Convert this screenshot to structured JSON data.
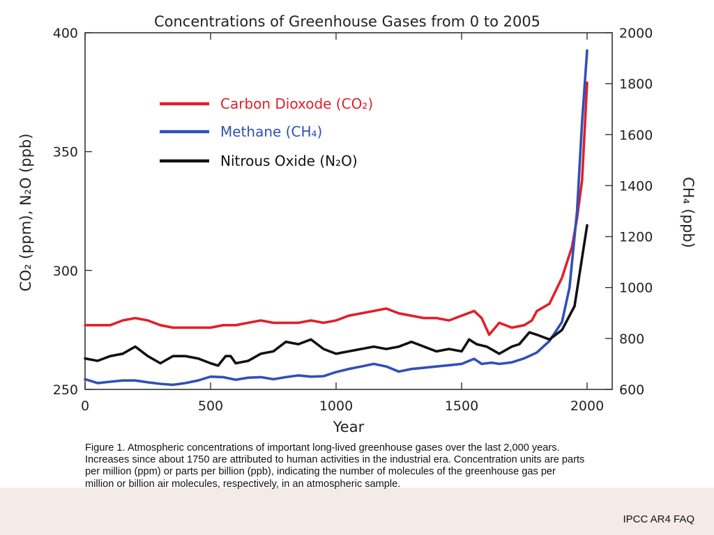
{
  "chart_data": {
    "type": "line",
    "title": "Concentrations of Greenhouse Gases from 0 to 2005",
    "xlabel": "Year",
    "ylabel_left": "CO₂ (ppm), N₂O (ppb)",
    "ylabel_right": "CH₄ (ppb)",
    "xlim": [
      0,
      2100
    ],
    "ylim_left": [
      250,
      400
    ],
    "ylim_right": [
      600,
      2000
    ],
    "x_ticks": [
      "0",
      "500",
      "1000",
      "1500",
      "2000"
    ],
    "y_left_ticks": [
      "250",
      "300",
      "350",
      "400"
    ],
    "y_right_ticks": [
      "600",
      "800",
      "1000",
      "1200",
      "1400",
      "1600",
      "1800",
      "2000"
    ],
    "series": [
      {
        "name": "Carbon Dioxode (CO₂)",
        "color": "#e0202a",
        "axis": "left",
        "x": [
          0,
          50,
          100,
          150,
          200,
          250,
          300,
          350,
          400,
          450,
          500,
          550,
          600,
          650,
          700,
          750,
          800,
          850,
          900,
          950,
          1000,
          1050,
          1100,
          1150,
          1200,
          1250,
          1300,
          1350,
          1400,
          1450,
          1500,
          1550,
          1580,
          1610,
          1650,
          1700,
          1750,
          1780,
          1800,
          1850,
          1900,
          1940,
          1960,
          1980,
          2000
        ],
        "y": [
          277,
          277,
          277,
          279,
          280,
          279,
          277,
          276,
          276,
          276,
          276,
          277,
          277,
          278,
          279,
          278,
          278,
          278,
          279,
          278,
          279,
          281,
          282,
          283,
          284,
          282,
          281,
          280,
          280,
          279,
          281,
          283,
          280,
          273,
          278,
          276,
          277,
          279,
          283,
          286,
          297,
          310,
          322,
          338,
          379
        ]
      },
      {
        "name": "Methane (CH₄)",
        "color": "#3050b8",
        "axis": "right",
        "x": [
          0,
          50,
          100,
          150,
          200,
          250,
          300,
          350,
          400,
          450,
          500,
          550,
          600,
          650,
          700,
          750,
          800,
          850,
          900,
          950,
          1000,
          1050,
          1100,
          1150,
          1200,
          1250,
          1300,
          1350,
          1400,
          1450,
          1500,
          1550,
          1580,
          1620,
          1650,
          1700,
          1750,
          1800,
          1850,
          1900,
          1930,
          1960,
          1980,
          2000
        ],
        "y": [
          640,
          625,
          630,
          635,
          635,
          628,
          622,
          618,
          625,
          635,
          650,
          648,
          638,
          646,
          648,
          640,
          648,
          655,
          650,
          652,
          668,
          680,
          690,
          700,
          690,
          670,
          680,
          685,
          690,
          695,
          700,
          720,
          700,
          705,
          700,
          706,
          722,
          745,
          790,
          865,
          1000,
          1300,
          1650,
          1930
        ]
      },
      {
        "name": "Nitrous Oxide (N₂O)",
        "color": "#111111",
        "axis": "left",
        "x": [
          0,
          50,
          100,
          150,
          200,
          250,
          300,
          350,
          400,
          450,
          500,
          530,
          560,
          580,
          600,
          650,
          700,
          750,
          800,
          850,
          900,
          950,
          1000,
          1050,
          1100,
          1150,
          1200,
          1250,
          1300,
          1350,
          1400,
          1450,
          1500,
          1530,
          1560,
          1600,
          1650,
          1700,
          1730,
          1770,
          1800,
          1850,
          1900,
          1950,
          2000
        ],
        "y": [
          263,
          262,
          264,
          265,
          268,
          264,
          261,
          264,
          264,
          263,
          261,
          260,
          264,
          264,
          261,
          262,
          265,
          266,
          270,
          269,
          271,
          267,
          265,
          266,
          267,
          268,
          267,
          268,
          270,
          268,
          266,
          267,
          266,
          271,
          269,
          268,
          265,
          268,
          269,
          274,
          273,
          271,
          275,
          285,
          319
        ]
      }
    ]
  },
  "caption": "Figure 1. Atmospheric concentrations of important long-lived greenhouse gases over the last 2,000 years. Increases since about 1750 are attributed to human activities in the industrial era. Concentration units are parts per million (ppm) or parts per billion (ppb), indicating the number of molecules of the greenhouse gas per million or billion air molecules, respectively, in an atmospheric sample.",
  "source": "IPCC AR4 FAQ"
}
